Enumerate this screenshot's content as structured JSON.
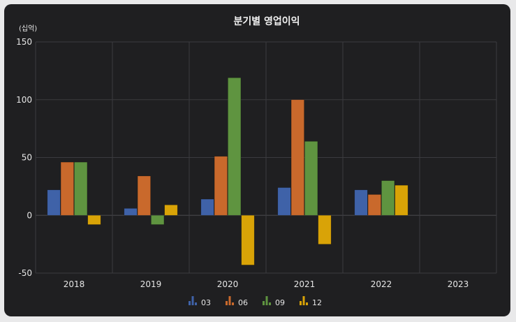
{
  "chart_data": {
    "type": "bar",
    "title": "분기별 영업이익",
    "unit_label": "(십억)",
    "categories": [
      "2018",
      "2019",
      "2020",
      "2021",
      "2022",
      "2023"
    ],
    "ylim": [
      -50,
      150
    ],
    "yticks": [
      -50,
      0,
      50,
      100,
      150
    ],
    "grid": true,
    "legend_position": "bottom",
    "series": [
      {
        "name": "03",
        "color": "#3f62a8",
        "values": [
          22,
          6,
          14,
          24,
          22,
          null
        ]
      },
      {
        "name": "06",
        "color": "#c9692c",
        "values": [
          46,
          34,
          51,
          100,
          18,
          null
        ]
      },
      {
        "name": "09",
        "color": "#5f9440",
        "values": [
          46,
          -8,
          119,
          64,
          30,
          null
        ]
      },
      {
        "name": "12",
        "color": "#d9a307",
        "values": [
          -8,
          9,
          -43,
          -25,
          26,
          null
        ]
      }
    ]
  }
}
